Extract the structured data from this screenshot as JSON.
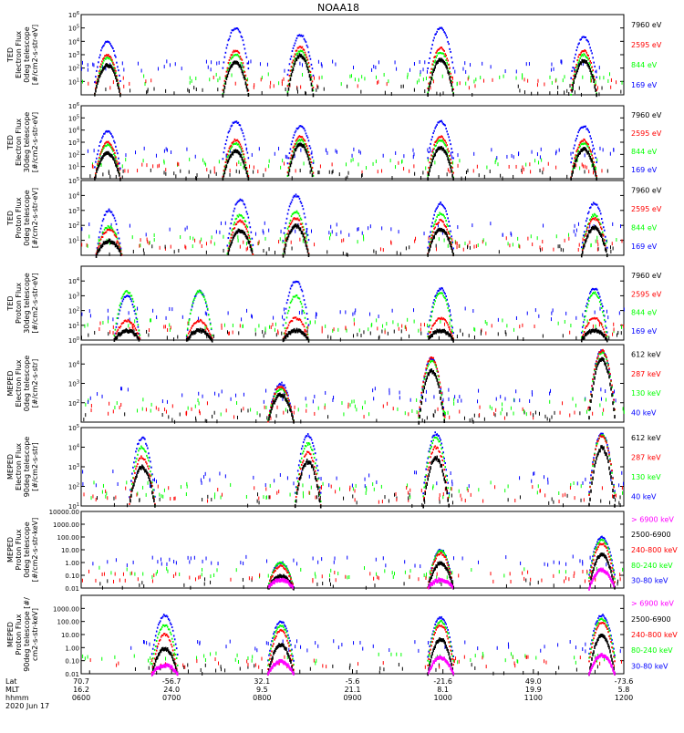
{
  "title": "NOAA18",
  "footer": {
    "row_labels": [
      "Lat",
      "MLT",
      "hhmm",
      "2020 Jun 17"
    ],
    "columns": [
      {
        "lat": "70.7",
        "mlt": "16.2",
        "hhmm": "0600"
      },
      {
        "lat": "-56.7",
        "mlt": "24.0",
        "hhmm": "0700"
      },
      {
        "lat": "32.1",
        "mlt": "9.5",
        "hhmm": "0800"
      },
      {
        "lat": "-5.6",
        "mlt": "21.1",
        "hhmm": "0900"
      },
      {
        "lat": "-21.6",
        "mlt": "8.1",
        "hhmm": "1000"
      },
      {
        "lat": "49.0",
        "mlt": "19.9",
        "hhmm": "1100"
      },
      {
        "lat": "-73.6",
        "mlt": "5.8",
        "hhmm": "1200"
      }
    ]
  },
  "colors": {
    "blue": "#0000ff",
    "red": "#ff0000",
    "green": "#00ff00",
    "black": "#000000",
    "magenta": "#ff00ff"
  },
  "chart_data": [
    {
      "type": "scatter",
      "log_y": true,
      "ylabel_lines": [
        "TED",
        "Electron Flux",
        "0deg telescope",
        "[#/cm2-s-str-eV]"
      ],
      "ytick_labels": [
        "10^1",
        "10^2",
        "10^3",
        "10^4",
        "10^5",
        "10^6"
      ],
      "ylim": [
        1,
        1000000
      ],
      "x_range_hhmm": [
        "0600",
        "1200"
      ],
      "legend": [
        {
          "label": "7960 eV",
          "color": "black"
        },
        {
          "label": "2595 eV",
          "color": "red"
        },
        {
          "label": "844 eV",
          "color": "green"
        },
        {
          "label": "169 eV",
          "color": "blue"
        }
      ],
      "events": [
        {
          "center_hhmm": "0617",
          "peak": {
            "blue": 10000,
            "red": 1000,
            "green": 600,
            "black": 200
          }
        },
        {
          "center_hhmm": "0742",
          "peak": {
            "blue": 100000,
            "red": 2000,
            "green": 1000,
            "black": 300
          }
        },
        {
          "center_hhmm": "0825",
          "peak": {
            "blue": 30000,
            "red": 4000,
            "green": 2000,
            "black": 1000
          }
        },
        {
          "center_hhmm": "0958",
          "peak": {
            "blue": 100000,
            "red": 3000,
            "green": 1500,
            "black": 500
          }
        },
        {
          "center_hhmm": "1133",
          "peak": {
            "blue": 20000,
            "red": 2000,
            "green": 1000,
            "black": 400
          }
        }
      ]
    },
    {
      "type": "scatter",
      "log_y": true,
      "ylabel_lines": [
        "TED",
        "Electron Flux",
        "30deg telescope",
        "[#/cm2-s-str-eV]"
      ],
      "ytick_labels": [
        "10^1",
        "10^2",
        "10^3",
        "10^4",
        "10^5",
        "10^6"
      ],
      "ylim": [
        1,
        1000000
      ],
      "x_range_hhmm": [
        "0600",
        "1200"
      ],
      "legend": [
        {
          "label": "7960 eV",
          "color": "black"
        },
        {
          "label": "2595 eV",
          "color": "red"
        },
        {
          "label": "844 eV",
          "color": "green"
        },
        {
          "label": "169 eV",
          "color": "blue"
        }
      ],
      "events": [
        {
          "center_hhmm": "0617",
          "peak": {
            "blue": 8000,
            "red": 1000,
            "green": 600,
            "black": 150
          }
        },
        {
          "center_hhmm": "0742",
          "peak": {
            "blue": 50000,
            "red": 1500,
            "green": 800,
            "black": 200
          }
        },
        {
          "center_hhmm": "0825",
          "peak": {
            "blue": 20000,
            "red": 3000,
            "green": 1500,
            "black": 800
          }
        },
        {
          "center_hhmm": "0958",
          "peak": {
            "blue": 50000,
            "red": 3000,
            "green": 1500,
            "black": 400
          }
        },
        {
          "center_hhmm": "1133",
          "peak": {
            "blue": 20000,
            "red": 1500,
            "green": 800,
            "black": 300
          }
        }
      ]
    },
    {
      "type": "scatter",
      "log_y": true,
      "ylabel_lines": [
        "TED",
        "Proton Flux",
        "0deg telescope",
        "[#/cm2-s-str-eV]"
      ],
      "ytick_labels": [
        "10^1",
        "10^2",
        "10^3",
        "10^4",
        "10^5"
      ],
      "ylim": [
        1,
        100000
      ],
      "x_range_hhmm": [
        "0600",
        "1200"
      ],
      "legend": [
        {
          "label": "7960 eV",
          "color": "black"
        },
        {
          "label": "2595 eV",
          "color": "red"
        },
        {
          "label": "844 eV",
          "color": "green"
        },
        {
          "label": "169 eV",
          "color": "blue"
        }
      ],
      "events": [
        {
          "center_hhmm": "0618",
          "peak": {
            "blue": 1000,
            "red": 50,
            "green": 80,
            "black": 10
          }
        },
        {
          "center_hhmm": "0745",
          "peak": {
            "blue": 5000,
            "red": 200,
            "green": 500,
            "black": 50
          }
        },
        {
          "center_hhmm": "0822",
          "peak": {
            "blue": 10000,
            "red": 300,
            "green": 800,
            "black": 100
          }
        },
        {
          "center_hhmm": "0958",
          "peak": {
            "blue": 3000,
            "red": 200,
            "green": 600,
            "black": 60
          }
        },
        {
          "center_hhmm": "1140",
          "peak": {
            "blue": 3000,
            "red": 300,
            "green": 500,
            "black": 80
          }
        }
      ]
    },
    {
      "type": "scatter",
      "log_y": true,
      "ylabel_lines": [
        "TED",
        "Proton Flux",
        "30deg telescope",
        "[#/cm2-s-str-eV]"
      ],
      "ytick_labels": [
        "10^0",
        "10^1",
        "10^2",
        "10^3",
        "10^4"
      ],
      "ylim": [
        1,
        100000
      ],
      "x_range_hhmm": [
        "0600",
        "1200"
      ],
      "legend": [
        {
          "label": "7960 eV",
          "color": "black"
        },
        {
          "label": "2595 eV",
          "color": "red"
        },
        {
          "label": "844 eV",
          "color": "green"
        },
        {
          "label": "169 eV",
          "color": "blue"
        }
      ],
      "events": [
        {
          "center_hhmm": "0630",
          "peak": {
            "blue": 1000,
            "red": 20,
            "green": 2000,
            "black": 5
          }
        },
        {
          "center_hhmm": "0718",
          "peak": {
            "blue": 2000,
            "red": 20,
            "green": 2000,
            "black": 5
          }
        },
        {
          "center_hhmm": "0822",
          "peak": {
            "blue": 10000,
            "red": 30,
            "green": 1000,
            "black": 5
          }
        },
        {
          "center_hhmm": "0958",
          "peak": {
            "blue": 3000,
            "red": 30,
            "green": 1500,
            "black": 5
          }
        },
        {
          "center_hhmm": "1140",
          "peak": {
            "blue": 3000,
            "red": 30,
            "green": 1500,
            "black": 5
          }
        }
      ]
    },
    {
      "type": "scatter",
      "log_y": true,
      "ylabel_lines": [
        "MEPED",
        "Electron Flux",
        "0deg telescope",
        "[#/cm2-s-str]"
      ],
      "ytick_labels": [
        "10^2",
        "10^3",
        "10^4"
      ],
      "ylim": [
        10,
        100000
      ],
      "x_range_hhmm": [
        "0600",
        "1200"
      ],
      "legend": [
        {
          "label": "612 keV",
          "color": "black"
        },
        {
          "label": "287 keV",
          "color": "red"
        },
        {
          "label": "130 keV",
          "color": "green"
        },
        {
          "label": "40 keV",
          "color": "blue"
        }
      ],
      "events": [
        {
          "center_hhmm": "0812",
          "peak": {
            "blue": 1000,
            "red": 700,
            "green": 500,
            "black": 300
          }
        },
        {
          "center_hhmm": "0952",
          "peak": {
            "blue": 20000,
            "red": 20000,
            "green": 15000,
            "black": 5000
          }
        },
        {
          "center_hhmm": "1145",
          "peak": {
            "blue": 50000,
            "red": 50000,
            "green": 40000,
            "black": 20000
          }
        }
      ]
    },
    {
      "type": "scatter",
      "log_y": true,
      "ylabel_lines": [
        "MEPED",
        "Electron Flux",
        "90deg telescope",
        "[#/cm2-s-str]"
      ],
      "ytick_labels": [
        "10^1",
        "10^2",
        "10^3",
        "10^4",
        "10^5"
      ],
      "ylim": [
        10,
        100000
      ],
      "x_range_hhmm": [
        "0600",
        "1200"
      ],
      "legend": [
        {
          "label": "612 keV",
          "color": "black"
        },
        {
          "label": "287 keV",
          "color": "red"
        },
        {
          "label": "130 keV",
          "color": "green"
        },
        {
          "label": "40 keV",
          "color": "blue"
        }
      ],
      "events": [
        {
          "center_hhmm": "0640",
          "peak": {
            "blue": 30000,
            "red": 3000,
            "green": 10000,
            "black": 1000
          }
        },
        {
          "center_hhmm": "0830",
          "peak": {
            "blue": 40000,
            "red": 5000,
            "green": 15000,
            "black": 2000
          }
        },
        {
          "center_hhmm": "0955",
          "peak": {
            "blue": 50000,
            "red": 10000,
            "green": 30000,
            "black": 3000
          }
        },
        {
          "center_hhmm": "1145",
          "peak": {
            "blue": 50000,
            "red": 40000,
            "green": 40000,
            "black": 10000
          }
        }
      ]
    },
    {
      "type": "scatter",
      "log_y": true,
      "ylabel_lines": [
        "MEPED",
        "Proton Flux",
        "0deg telescope",
        "[#/cm2-s-str-keV]"
      ],
      "ytick_labels": [
        "0.01",
        "0.10",
        "1.00",
        "10.00",
        "100.00",
        "1000.00",
        "10000.00"
      ],
      "ylim": [
        0.01,
        10000
      ],
      "x_range_hhmm": [
        "0600",
        "1200"
      ],
      "legend": [
        {
          "label": "> 6900 keV",
          "color": "magenta"
        },
        {
          "label": "2500-6900",
          "color": "black"
        },
        {
          "label": "240-800 keV",
          "color": "red"
        },
        {
          "label": "80-240 keV",
          "color": "green"
        },
        {
          "label": "30-80 keV",
          "color": "blue"
        }
      ],
      "events": [
        {
          "center_hhmm": "0812",
          "peak": {
            "blue": 1,
            "red": 0.5,
            "green": 1,
            "black": 0.1,
            "magenta": 0.05
          }
        },
        {
          "center_hhmm": "0958",
          "peak": {
            "blue": 10,
            "red": 5,
            "green": 8,
            "black": 1,
            "magenta": 0.05
          }
        },
        {
          "center_hhmm": "1145",
          "peak": {
            "blue": 100,
            "red": 30,
            "green": 60,
            "black": 5,
            "magenta": 0.3
          }
        }
      ]
    },
    {
      "type": "scatter",
      "log_y": true,
      "ylabel_lines": [
        "MEPED",
        "Proton Flux",
        "90deg telescope [#/",
        "cm2-s-str-keV]"
      ],
      "ytick_labels": [
        "0.01",
        "0.10",
        "1.00",
        "10.00",
        "100.00",
        "1000.00"
      ],
      "ylim": [
        0.01,
        10000
      ],
      "x_range_hhmm": [
        "0600",
        "1200"
      ],
      "legend": [
        {
          "label": "> 6900 keV",
          "color": "magenta"
        },
        {
          "label": "2500-6900",
          "color": "black"
        },
        {
          "label": "240-800 keV",
          "color": "red"
        },
        {
          "label": "80-240 keV",
          "color": "green"
        },
        {
          "label": "30-80 keV",
          "color": "blue"
        }
      ],
      "events": [
        {
          "center_hhmm": "0655",
          "peak": {
            "blue": 300,
            "red": 10,
            "green": 50,
            "black": 1,
            "magenta": 0.05
          }
        },
        {
          "center_hhmm": "0812",
          "peak": {
            "blue": 100,
            "red": 20,
            "green": 50,
            "black": 2,
            "magenta": 0.1
          }
        },
        {
          "center_hhmm": "0958",
          "peak": {
            "blue": 200,
            "red": 50,
            "green": 100,
            "black": 5,
            "magenta": 0.2
          }
        },
        {
          "center_hhmm": "1145",
          "peak": {
            "blue": 300,
            "red": 80,
            "green": 150,
            "black": 10,
            "magenta": 0.3
          }
        }
      ]
    }
  ]
}
